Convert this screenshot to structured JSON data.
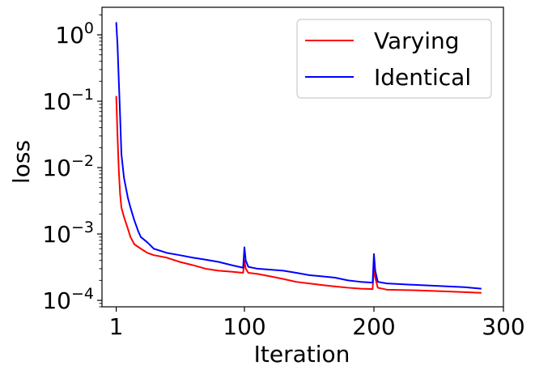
{
  "chart_data": {
    "type": "line",
    "xlabel": "Iteration",
    "ylabel": "loss",
    "xscale": "linear",
    "yscale": "log",
    "xlim": [
      -10,
      300
    ],
    "ylim": [
      8e-05,
      2.6
    ],
    "xticks": [
      {
        "value": 1,
        "label": "1"
      },
      {
        "value": 100,
        "label": "100"
      },
      {
        "value": 200,
        "label": "200"
      },
      {
        "value": 300,
        "label": "300"
      }
    ],
    "yticks": [
      {
        "value": 1,
        "exp": "0"
      },
      {
        "value": 0.1,
        "exp": "−1"
      },
      {
        "value": 0.01,
        "exp": "−2"
      },
      {
        "value": 0.001,
        "exp": "−3"
      },
      {
        "value": 0.0001,
        "exp": "−4"
      }
    ],
    "tick_base": "10",
    "legend_position": "top-right",
    "series": [
      {
        "name": "Varying",
        "color": "#ff0000",
        "points": [
          [
            1,
            0.12
          ],
          [
            2,
            0.03
          ],
          [
            3,
            0.009
          ],
          [
            4,
            0.004
          ],
          [
            5,
            0.0025
          ],
          [
            7,
            0.0018
          ],
          [
            10,
            0.0012
          ],
          [
            12,
            0.0009
          ],
          [
            15,
            0.0007
          ],
          [
            20,
            0.0006
          ],
          [
            25,
            0.00052
          ],
          [
            30,
            0.00048
          ],
          [
            40,
            0.00044
          ],
          [
            50,
            0.00038
          ],
          [
            60,
            0.00034
          ],
          [
            70,
            0.0003
          ],
          [
            80,
            0.00028
          ],
          [
            90,
            0.00027
          ],
          [
            99,
            0.00026
          ],
          [
            100,
            0.0004
          ],
          [
            101,
            0.0003
          ],
          [
            103,
            0.00026
          ],
          [
            110,
            0.00025
          ],
          [
            120,
            0.00023
          ],
          [
            130,
            0.00021
          ],
          [
            140,
            0.00019
          ],
          [
            150,
            0.00018
          ],
          [
            160,
            0.00017
          ],
          [
            170,
            0.000162
          ],
          [
            180,
            0.000155
          ],
          [
            190,
            0.00015
          ],
          [
            199,
            0.000148
          ],
          [
            200,
            0.00034
          ],
          [
            201,
            0.00022
          ],
          [
            203,
            0.000155
          ],
          [
            210,
            0.000145
          ],
          [
            230,
            0.000142
          ],
          [
            250,
            0.000138
          ],
          [
            270,
            0.000133
          ],
          [
            283,
            0.00013
          ]
        ]
      },
      {
        "name": "Identical",
        "color": "#0000ff",
        "points": [
          [
            1,
            1.55
          ],
          [
            2,
            0.7
          ],
          [
            3,
            0.2
          ],
          [
            4,
            0.06
          ],
          [
            5,
            0.016
          ],
          [
            7,
            0.007
          ],
          [
            10,
            0.0035
          ],
          [
            12,
            0.0025
          ],
          [
            15,
            0.0016
          ],
          [
            18,
            0.0011
          ],
          [
            20,
            0.0009
          ],
          [
            25,
            0.00075
          ],
          [
            30,
            0.0006
          ],
          [
            40,
            0.00052
          ],
          [
            50,
            0.00048
          ],
          [
            60,
            0.00044
          ],
          [
            70,
            0.00041
          ],
          [
            80,
            0.00038
          ],
          [
            90,
            0.00034
          ],
          [
            99,
            0.00031
          ],
          [
            100,
            0.00063
          ],
          [
            101,
            0.0004
          ],
          [
            103,
            0.00032
          ],
          [
            110,
            0.0003
          ],
          [
            120,
            0.00029
          ],
          [
            130,
            0.00028
          ],
          [
            140,
            0.00026
          ],
          [
            150,
            0.00024
          ],
          [
            160,
            0.00023
          ],
          [
            170,
            0.00022
          ],
          [
            180,
            0.0002
          ],
          [
            190,
            0.00019
          ],
          [
            199,
            0.000185
          ],
          [
            200,
            0.0005
          ],
          [
            201,
            0.00028
          ],
          [
            203,
            0.00019
          ],
          [
            210,
            0.00018
          ],
          [
            230,
            0.000172
          ],
          [
            250,
            0.000165
          ],
          [
            270,
            0.000158
          ],
          [
            283,
            0.00015
          ]
        ]
      }
    ]
  }
}
